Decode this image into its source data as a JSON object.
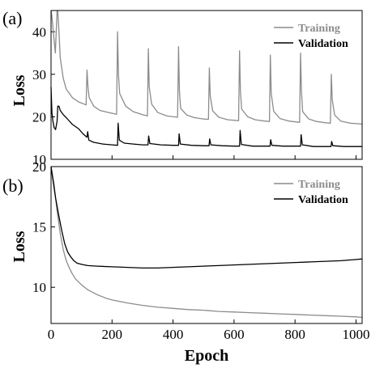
{
  "chart_data": [
    {
      "panel_label": "(a)",
      "type": "line",
      "ylabel": "Loss",
      "xlabel": "",
      "xlim": [
        0,
        1020
      ],
      "ylim": [
        10,
        45
      ],
      "xticks": [
        0,
        200,
        400,
        600,
        800,
        1000
      ],
      "yticks": [
        10,
        20,
        30,
        40
      ],
      "legend_position": "top-right",
      "series": [
        {
          "name": "Training",
          "color": "#8c8c8c",
          "x": [
            0,
            2,
            5,
            10,
            14,
            17,
            20,
            22,
            26,
            30,
            40,
            50,
            70,
            90,
            115,
            118,
            121,
            125,
            140,
            160,
            190,
            215,
            218,
            221,
            225,
            245,
            270,
            300,
            316,
            319,
            322,
            330,
            350,
            380,
            415,
            418,
            421,
            425,
            445,
            470,
            500,
            516,
            519,
            522,
            530,
            550,
            580,
            615,
            618,
            621,
            625,
            645,
            670,
            700,
            716,
            719,
            722,
            730,
            750,
            780,
            815,
            818,
            821,
            825,
            845,
            870,
            900,
            916,
            919,
            922,
            930,
            950,
            980,
            1020
          ],
          "y": [
            45,
            44,
            42,
            38,
            35,
            40,
            46,
            46,
            40,
            34,
            29,
            26.5,
            24.5,
            23.5,
            22.8,
            31,
            27,
            24.5,
            22.5,
            21.5,
            21,
            20.6,
            40,
            30,
            25.5,
            22.5,
            21.2,
            20.5,
            20.2,
            36,
            27,
            23,
            21,
            20.2,
            19.9,
            36.5,
            26,
            22,
            20.4,
            19.8,
            19.5,
            19.4,
            31.5,
            25,
            21.4,
            19.9,
            19.3,
            19.1,
            35.5,
            26,
            21.8,
            20,
            19.3,
            19,
            18.9,
            34.5,
            25.5,
            21.3,
            19.6,
            19,
            18.7,
            35,
            26,
            21.2,
            19.5,
            18.9,
            18.6,
            18.5,
            30,
            24,
            20.4,
            19,
            18.5,
            18.3
          ]
        },
        {
          "name": "Validation",
          "color": "#000000",
          "x": [
            0,
            3,
            6,
            10,
            15,
            20,
            22,
            26,
            30,
            40,
            50,
            70,
            90,
            105,
            118,
            120,
            124,
            140,
            170,
            200,
            218,
            220,
            224,
            240,
            270,
            300,
            318,
            320,
            324,
            360,
            400,
            418,
            420,
            424,
            460,
            500,
            518,
            520,
            524,
            560,
            600,
            618,
            620,
            624,
            660,
            700,
            718,
            720,
            724,
            760,
            800,
            818,
            820,
            824,
            860,
            900,
            918,
            920,
            924,
            960,
            1020
          ],
          "y": [
            27,
            21,
            19,
            17.5,
            17,
            19,
            22.5,
            22.5,
            21.5,
            20.5,
            19.8,
            18.2,
            17.2,
            16,
            15.2,
            16.5,
            14.5,
            14,
            13.6,
            13.4,
            13.3,
            18.5,
            14.5,
            13.8,
            13.6,
            13.4,
            13.4,
            15.5,
            13.7,
            13.4,
            13.3,
            13.3,
            16,
            13.6,
            13.3,
            13.2,
            13.2,
            14.8,
            13.4,
            13.2,
            13.1,
            13.1,
            16.8,
            13.5,
            13.1,
            13.1,
            13.1,
            14.6,
            13.3,
            13.1,
            13.1,
            13.1,
            15.8,
            13.4,
            13,
            13,
            13,
            14.2,
            13.2,
            13,
            13
          ]
        }
      ]
    },
    {
      "panel_label": "(b)",
      "type": "line",
      "ylabel": "Loss",
      "xlabel": "Epoch",
      "xlim": [
        0,
        1020
      ],
      "ylim": [
        7,
        20
      ],
      "xticks": [
        0,
        200,
        400,
        600,
        800,
        1000
      ],
      "xtick_labels": [
        "0",
        "200",
        "400",
        "600",
        "800",
        "1000"
      ],
      "yticks": [
        10,
        15,
        20
      ],
      "legend_position": "top-right",
      "series": [
        {
          "name": "Training",
          "color": "#8c8c8c",
          "x": [
            0,
            10,
            20,
            30,
            40,
            50,
            60,
            70,
            80,
            100,
            120,
            150,
            180,
            200,
            250,
            300,
            350,
            400,
            450,
            500,
            550,
            600,
            650,
            700,
            750,
            800,
            850,
            900,
            950,
            1000,
            1020
          ],
          "y": [
            20,
            18.5,
            16.3,
            14.5,
            13.1,
            12.2,
            11.6,
            11.1,
            10.7,
            10.2,
            9.8,
            9.4,
            9.1,
            8.95,
            8.7,
            8.5,
            8.35,
            8.25,
            8.15,
            8.1,
            8.0,
            7.95,
            7.9,
            7.85,
            7.8,
            7.75,
            7.7,
            7.65,
            7.6,
            7.55,
            7.5
          ]
        },
        {
          "name": "Validation",
          "color": "#000000",
          "x": [
            0,
            8,
            15,
            25,
            35,
            45,
            55,
            65,
            75,
            85,
            100,
            120,
            150,
            200,
            250,
            300,
            350,
            400,
            450,
            500,
            550,
            600,
            650,
            700,
            750,
            800,
            850,
            900,
            950,
            1000,
            1020
          ],
          "y": [
            20,
            18.6,
            17.4,
            16,
            14.7,
            13.6,
            12.9,
            12.5,
            12.2,
            12.0,
            11.9,
            11.8,
            11.75,
            11.7,
            11.65,
            11.6,
            11.6,
            11.65,
            11.7,
            11.75,
            11.8,
            11.85,
            11.9,
            11.95,
            12.0,
            12.05,
            12.1,
            12.15,
            12.2,
            12.3,
            12.35
          ]
        }
      ]
    }
  ]
}
